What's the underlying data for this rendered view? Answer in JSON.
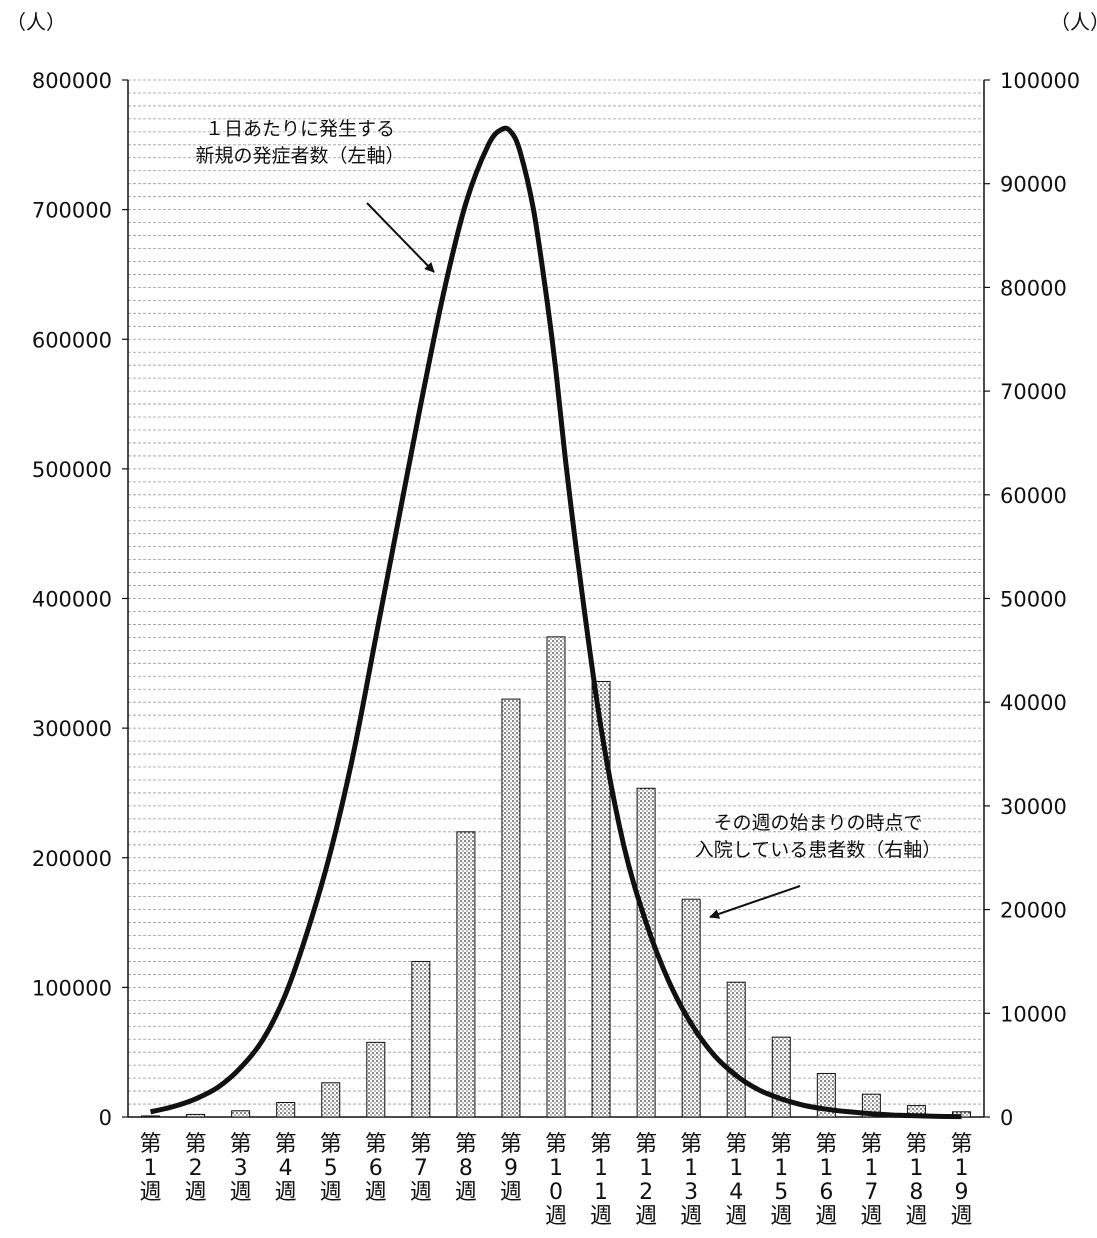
{
  "chart_data": {
    "type": "bar+line",
    "categories": [
      "第1週",
      "第2週",
      "第3週",
      "第4週",
      "第5週",
      "第6週",
      "第7週",
      "第8週",
      "第9週",
      "第10週",
      "第11週",
      "第12週",
      "第13週",
      "第14週",
      "第15週",
      "第16週",
      "第17週",
      "第18週",
      "第19週"
    ],
    "axes": {
      "left": {
        "unit": "（人）",
        "ylim": [
          0,
          800000
        ],
        "ticks": [
          0,
          100000,
          200000,
          300000,
          400000,
          500000,
          600000,
          700000,
          800000
        ]
      },
      "right": {
        "unit": "（人）",
        "ylim": [
          0,
          100000
        ],
        "ticks": [
          0,
          10000,
          20000,
          30000,
          40000,
          50000,
          60000,
          70000,
          80000,
          90000,
          100000
        ]
      }
    },
    "grid": true,
    "series": [
      {
        "name": "その週の始まりの時点で入院している患者数（右軸）",
        "type": "bar",
        "axis": "right",
        "values": [
          100,
          250,
          600,
          1400,
          3300,
          7200,
          15000,
          27500,
          40300,
          46300,
          42000,
          31700,
          21000,
          13000,
          7700,
          4200,
          2200,
          1100,
          500
        ]
      },
      {
        "name": "1日あたりに発生する新規の発症者数（左軸）",
        "type": "line",
        "axis": "left",
        "x": [
          0,
          0.5,
          1,
          1.5,
          2,
          2.5,
          3,
          3.5,
          4,
          4.5,
          5,
          5.5,
          6,
          6.5,
          7,
          7.5,
          7.8,
          8,
          8.2,
          8.5,
          8.8,
          9,
          9.2,
          9.5,
          10,
          10.5,
          11,
          11.5,
          12,
          12.5,
          13,
          13.5,
          14,
          14.5,
          15,
          15.5,
          16,
          16.5,
          17,
          17.5,
          18
        ],
        "values": [
          4000,
          8000,
          14000,
          23000,
          38000,
          60000,
          95000,
          145000,
          205000,
          280000,
          370000,
          460000,
          550000,
          635000,
          705000,
          750000,
          762000,
          760000,
          745000,
          700000,
          630000,
          575000,
          510000,
          425000,
          300000,
          210000,
          150000,
          105000,
          72000,
          48000,
          32000,
          21000,
          14000,
          9000,
          6000,
          4000,
          2500,
          1500,
          900,
          500,
          300
        ]
      }
    ],
    "annotations": [
      {
        "lines": [
          "１日あたりに発生する",
          "新規の発症者数（左軸）"
        ]
      },
      {
        "lines": [
          "その週の始まりの時点で",
          "入院している患者数（右軸）"
        ]
      }
    ]
  }
}
